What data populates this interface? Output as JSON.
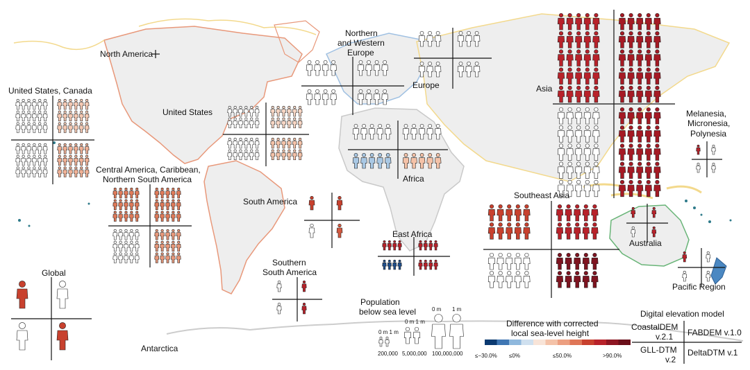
{
  "regions": [
    {
      "id": "north-america",
      "label": "North America",
      "colors": [
        "#e8987a",
        "#ffffff",
        "#ffffff",
        "#e8987a"
      ]
    },
    {
      "id": "united-states-canada",
      "label": "United States, Canada",
      "colors": [
        "#ffffff",
        "#f5c9b3",
        "#ffffff",
        "#f0b196"
      ]
    },
    {
      "id": "united-states",
      "label": "United States",
      "colors": [
        "#ffffff",
        "#f7d6c4",
        "#ffffff",
        "#f4c2a8"
      ]
    },
    {
      "id": "central-america",
      "label": "Central America, Caribbean, Northern South America",
      "colors": [
        "#e07b5a",
        "#e07b5a",
        "#ffffff",
        "#e8987a"
      ]
    },
    {
      "id": "south-america",
      "label": "South America",
      "colors": [
        "#c8412e",
        "#c8412e",
        "#ffffff",
        "#d35940"
      ]
    },
    {
      "id": "southern-south-america",
      "label": "Southern South America",
      "colors": [
        "#ffffff",
        "#b8222a",
        "#ffffff",
        "#b8222a"
      ]
    },
    {
      "id": "global",
      "label": "Global",
      "colors": [
        "#c8412e",
        "#ffffff",
        "#ffffff",
        "#c8412e"
      ]
    },
    {
      "id": "northern-western-europe",
      "label": "Northern and Western Europe",
      "colors": [
        "#ffffff",
        "#ffffff",
        "#ffffff",
        "#ffffff"
      ]
    },
    {
      "id": "europe",
      "label": "Europe",
      "colors": [
        "#ffffff",
        "#ffffff",
        "#ffffff",
        "#ffffff"
      ]
    },
    {
      "id": "africa",
      "label": "Africa",
      "colors": [
        "#ffffff",
        "#ffffff",
        "#a9c8e4",
        "#f4c2a8"
      ]
    },
    {
      "id": "east-africa",
      "label": "East Africa",
      "colors": [
        "#b8222a",
        "#b8222a",
        "#1f4e8a",
        "#b8222a"
      ]
    },
    {
      "id": "asia",
      "label": "Asia",
      "colors": [
        "#b8222a",
        "#a51a24",
        "#ffffff",
        "#a51a24"
      ]
    },
    {
      "id": "southeast-asia",
      "label": "Southeast Asia",
      "colors": [
        "#c8412e",
        "#b8222a",
        "#ffffff",
        "#7e1420"
      ]
    },
    {
      "id": "melanesia",
      "label": "Melanesia, Micronesia, Polynesia",
      "colors": [
        "#b8222a",
        "#ffffff",
        "#ffffff",
        "#ffffff"
      ]
    },
    {
      "id": "australia",
      "label": "Australia",
      "colors": [
        "#b8222a",
        "#b8222a",
        "#ffffff",
        "#b8222a"
      ]
    },
    {
      "id": "pacific-region",
      "label": "Pacific Region",
      "colors": [
        "#b8222a",
        "#ffffff",
        "#ffffff",
        "#ffffff"
      ]
    },
    {
      "id": "antarctica",
      "label": "Antarctica",
      "colors": []
    }
  ],
  "population_legend": {
    "title_line1": "Population",
    "title_line2": "below sea level",
    "items": [
      {
        "value": "200,000",
        "marks": "0 m 1 m"
      },
      {
        "value": "5,000,000",
        "marks": "0 m 1 m"
      },
      {
        "value": "100,000,000",
        "marks": "0 m"
      },
      {
        "value": "",
        "marks": "1 m"
      }
    ]
  },
  "color_legend": {
    "title_line1": "Difference with corrected",
    "title_line2": "local sea-level height",
    "colors": [
      "#0b3a70",
      "#3f76b3",
      "#8fb8dd",
      "#cfe0ef",
      "#f8e4d8",
      "#f4c2a8",
      "#ec9f80",
      "#df7657",
      "#c8412e",
      "#b8222a",
      "#8e1622",
      "#6b0f1a"
    ],
    "ticks": [
      "≤−30.0%",
      "≤0%",
      "≤50.0%",
      ">90.0%"
    ]
  },
  "dem_legend": {
    "title": "Digital elevation model",
    "top_left": "CoastalDEM",
    "top_left_sub": "v.2.1",
    "top_right": "FABDEM v.1.0",
    "bottom_left": "GLL-DTM",
    "bottom_left_sub": "v.2",
    "bottom_right": "DeltaDTM v.1"
  },
  "continent_colors": {
    "americas": "#e8987a",
    "europe": "#9fc0e2",
    "asia": "#f3d98c",
    "africa": "#c9c9c9",
    "oceania": "#68b477",
    "antarctica": "#cccccc"
  }
}
